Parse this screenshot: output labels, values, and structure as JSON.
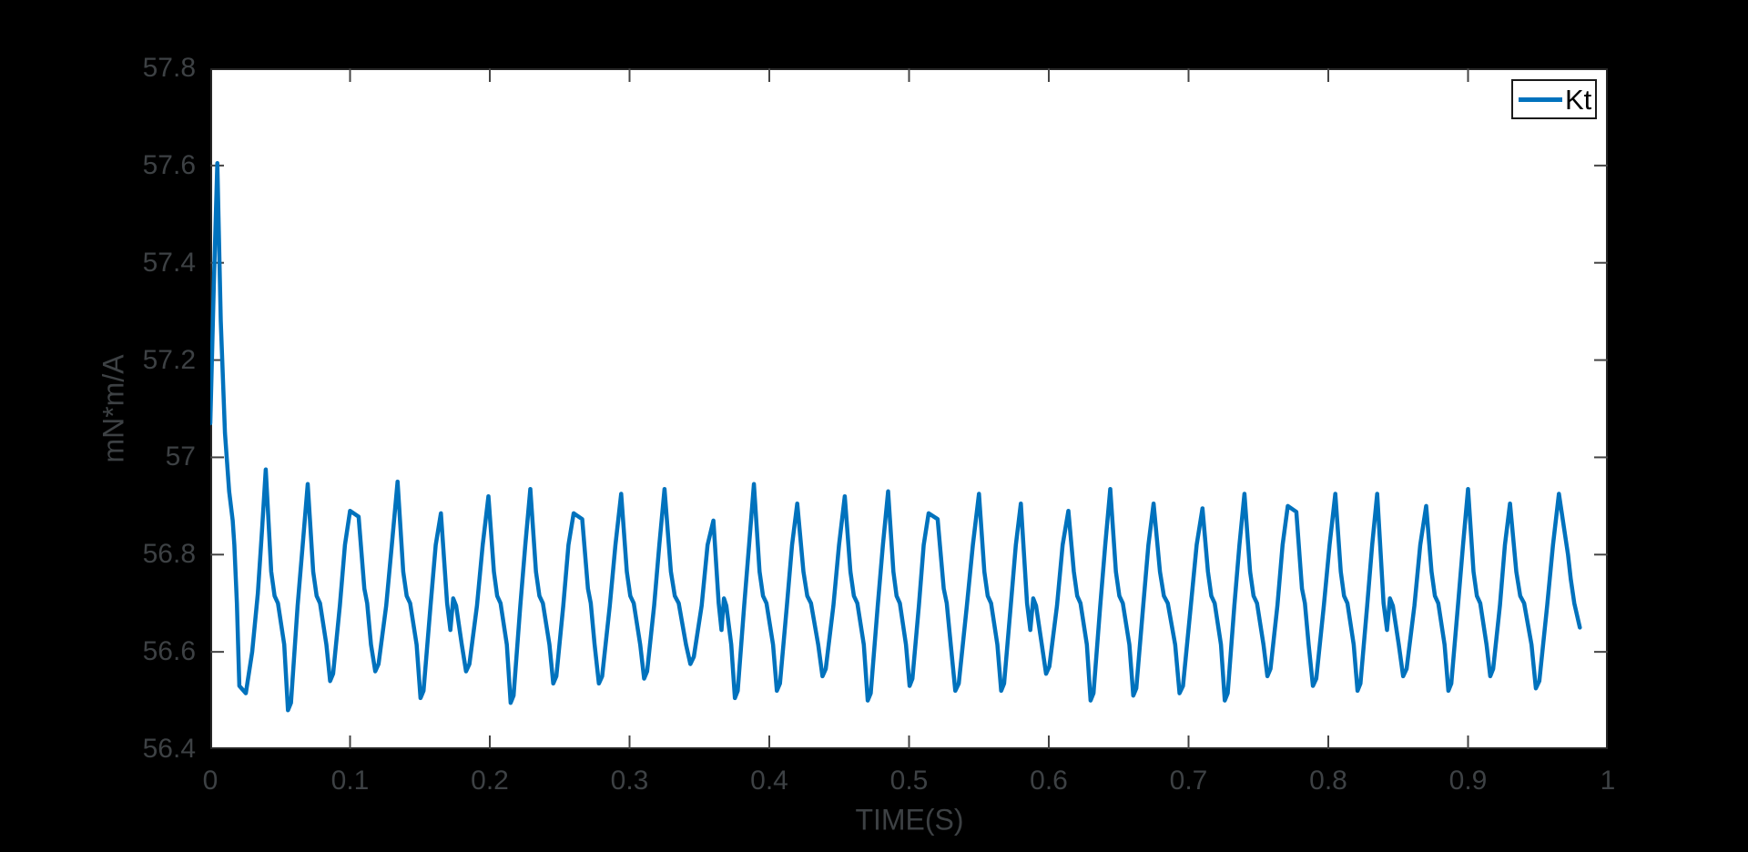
{
  "figure": {
    "background": "#000000",
    "plot_background": "#ffffff",
    "axis_color": "#262626",
    "tick_color": "#444444",
    "tick_label_color": "#3d4144",
    "accent_blue": "#0072BD"
  },
  "chart_data": {
    "type": "line",
    "title": "",
    "xlabel": "TIME(S)",
    "ylabel": "mN*m/A",
    "xlim": [
      0,
      1
    ],
    "ylim": [
      56.4,
      57.8
    ],
    "grid": false,
    "box": true,
    "x_ticks": {
      "values": [
        0,
        0.1,
        0.2,
        0.3,
        0.4,
        0.5,
        0.6,
        0.7,
        0.8,
        0.9,
        1
      ],
      "labels": [
        "0",
        "0.1",
        "0.2",
        "0.3",
        "0.4",
        "0.5",
        "0.6",
        "0.7",
        "0.8",
        "0.9",
        "1"
      ]
    },
    "y_ticks": {
      "values": [
        56.4,
        56.6,
        56.8,
        57,
        57.2,
        57.4,
        57.6,
        57.8
      ],
      "labels": [
        "56.4",
        "56.6",
        "56.8",
        "57",
        "57.2",
        "57.4",
        "57.6",
        "57.8"
      ]
    },
    "legend": {
      "position": "top-right",
      "entries": [
        {
          "label": "Kt",
          "color": "#0072BD"
        }
      ]
    },
    "series": [
      {
        "name": "Kt",
        "color": "#0072BD",
        "line_width": 4.5,
        "description": "Torque constant estimate: initial spike to 57.6 mN*m/A at t=0.005s settling into ~31 Hz sawtooth oscillation between ~56.5 and ~56.95",
        "transient_points": [
          [
            0.0,
            57.07
          ],
          [
            0.0025,
            57.35
          ],
          [
            0.005,
            57.605
          ],
          [
            0.0075,
            57.28
          ],
          [
            0.0105,
            57.05
          ],
          [
            0.0135,
            56.93
          ],
          [
            0.016,
            56.87
          ],
          [
            0.0172,
            56.82
          ],
          [
            0.019,
            56.7
          ],
          [
            0.0208,
            56.53
          ],
          [
            0.0254,
            56.515
          ],
          [
            0.03,
            56.6
          ],
          [
            0.034,
            56.72
          ],
          [
            0.037,
            56.85
          ]
        ],
        "cycles": [
          {
            "t": 0.0397,
            "peak": 56.975,
            "trough": 56.48,
            "shape": "std"
          },
          {
            "t": 0.0697,
            "peak": 56.945,
            "trough": 56.54,
            "shape": "std"
          },
          {
            "t": 0.1,
            "peak": 56.89,
            "trough": 56.56,
            "shape": "flat"
          },
          {
            "t": 0.134,
            "peak": 56.95,
            "trough": 56.505,
            "shape": "std"
          },
          {
            "t": 0.165,
            "peak": 56.885,
            "trough": 56.56,
            "shape": "blip"
          },
          {
            "t": 0.199,
            "peak": 56.92,
            "trough": 56.495,
            "shape": "std"
          },
          {
            "t": 0.229,
            "peak": 56.935,
            "trough": 56.535,
            "shape": "std"
          },
          {
            "t": 0.26,
            "peak": 56.885,
            "trough": 56.535,
            "shape": "flat"
          },
          {
            "t": 0.294,
            "peak": 56.925,
            "trough": 56.545,
            "shape": "std"
          },
          {
            "t": 0.325,
            "peak": 56.935,
            "trough": 56.575,
            "shape": "std"
          },
          {
            "t": 0.36,
            "peak": 56.87,
            "trough": 56.505,
            "shape": "blip"
          },
          {
            "t": 0.389,
            "peak": 56.945,
            "trough": 56.52,
            "shape": "std"
          },
          {
            "t": 0.42,
            "peak": 56.905,
            "trough": 56.55,
            "shape": "std"
          },
          {
            "t": 0.454,
            "peak": 56.92,
            "trough": 56.5,
            "shape": "std"
          },
          {
            "t": 0.485,
            "peak": 56.93,
            "trough": 56.53,
            "shape": "std"
          },
          {
            "t": 0.514,
            "peak": 56.885,
            "trough": 56.52,
            "shape": "flat"
          },
          {
            "t": 0.55,
            "peak": 56.925,
            "trough": 56.52,
            "shape": "std"
          },
          {
            "t": 0.58,
            "peak": 56.905,
            "trough": 56.555,
            "shape": "blip"
          },
          {
            "t": 0.614,
            "peak": 56.89,
            "trough": 56.5,
            "shape": "std"
          },
          {
            "t": 0.644,
            "peak": 56.935,
            "trough": 56.51,
            "shape": "std"
          },
          {
            "t": 0.675,
            "peak": 56.905,
            "trough": 56.515,
            "shape": "std"
          },
          {
            "t": 0.71,
            "peak": 56.895,
            "trough": 56.5,
            "shape": "std"
          },
          {
            "t": 0.74,
            "peak": 56.925,
            "trough": 56.55,
            "shape": "std"
          },
          {
            "t": 0.771,
            "peak": 56.9,
            "trough": 56.53,
            "shape": "flat"
          },
          {
            "t": 0.805,
            "peak": 56.925,
            "trough": 56.52,
            "shape": "std"
          },
          {
            "t": 0.835,
            "peak": 56.925,
            "trough": 56.55,
            "shape": "blip"
          },
          {
            "t": 0.87,
            "peak": 56.9,
            "trough": 56.52,
            "shape": "std"
          },
          {
            "t": 0.9,
            "peak": 56.935,
            "trough": 56.55,
            "shape": "std"
          },
          {
            "t": 0.93,
            "peak": 56.905,
            "trough": 56.525,
            "shape": "std"
          },
          {
            "t": 0.965,
            "peak": 56.925,
            "trough": null,
            "shape": "end"
          }
        ],
        "end_points": [
          [
            0.9715,
            56.8
          ],
          [
            0.9735,
            56.75
          ],
          [
            0.976,
            56.7
          ],
          [
            0.98,
            56.65
          ]
        ]
      }
    ]
  }
}
